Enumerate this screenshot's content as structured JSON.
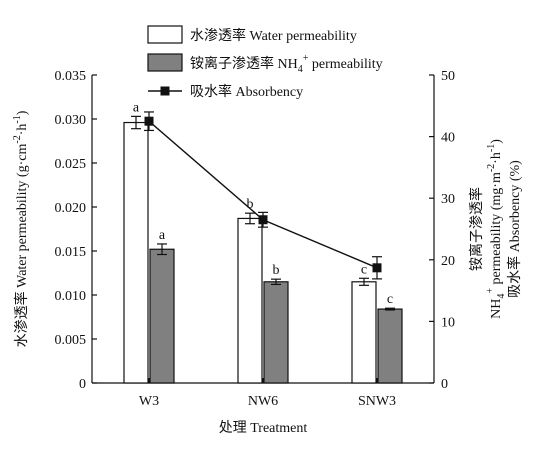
{
  "chart_data": {
    "type": "bar",
    "categories": [
      "W3",
      "NW6",
      "SNW3"
    ],
    "xlabel": "处理 Treatment",
    "ylabel_left": "水渗透率 Water permeability (g·cm⁻²·h⁻¹)",
    "ylabel_left_parts": {
      "main": "水渗透率 Water permeability (g·cm",
      "sup1": "-2",
      "mid": "·h",
      "sup2": "-1",
      "end": ")"
    },
    "ylabel_right_lines": [
      "铵离子渗透率",
      "NH₄⁺ permeability (mg·m⁻²·h⁻¹)",
      "吸水率 Absorbency (%)"
    ],
    "ylabel_right_parts": {
      "line1": "铵离子渗透率",
      "line2_a": "NH",
      "line2_sub": "4",
      "line2_sup": "+",
      "line2_b": " permeability (mg·m",
      "line2_sup2": "-2",
      "line2_c": "·h",
      "line2_sup3": "-1",
      "line2_d": ")",
      "line3": "吸水率 Absorbency (%)"
    },
    "ylim_left": [
      0,
      0.035
    ],
    "yticks_left": [
      "0",
      "0.005",
      "0.010",
      "0.015",
      "0.020",
      "0.025",
      "0.030",
      "0.035"
    ],
    "ylim_right": [
      0,
      50
    ],
    "yticks_right": [
      "0",
      "10",
      "20",
      "30",
      "40",
      "50"
    ],
    "legend": {
      "position": "top",
      "entries": [
        {
          "label": "水渗透率 Water permeability"
        },
        {
          "label_a": "铵离子渗透率 NH",
          "label_sub": "4",
          "label_sup": "+",
          "label_b": " permeability"
        },
        {
          "label": "吸水率 Absorbency"
        }
      ]
    },
    "series": [
      {
        "name": "水渗透率 Water permeability",
        "kind": "bar",
        "axis": "left",
        "color": "#ffffff",
        "values": [
          0.0296,
          0.0187,
          0.0115
        ],
        "errors": [
          0.0007,
          0.0006,
          0.0004
        ],
        "labels": [
          "a",
          "b",
          "c"
        ]
      },
      {
        "name": "铵离子渗透率 NH4+ permeability",
        "kind": "bar",
        "axis": "left",
        "color": "#808080",
        "values": [
          0.0152,
          0.0115,
          0.0084
        ],
        "errors": [
          0.0006,
          0.0003,
          0.0001
        ],
        "labels": [
          "a",
          "b",
          "c"
        ]
      },
      {
        "name": "吸水率 Absorbency",
        "kind": "line",
        "axis": "right",
        "color": "#111111",
        "values": [
          42.5,
          26.5,
          18.7
        ],
        "errors": [
          1.5,
          1.2,
          1.8
        ]
      }
    ]
  }
}
